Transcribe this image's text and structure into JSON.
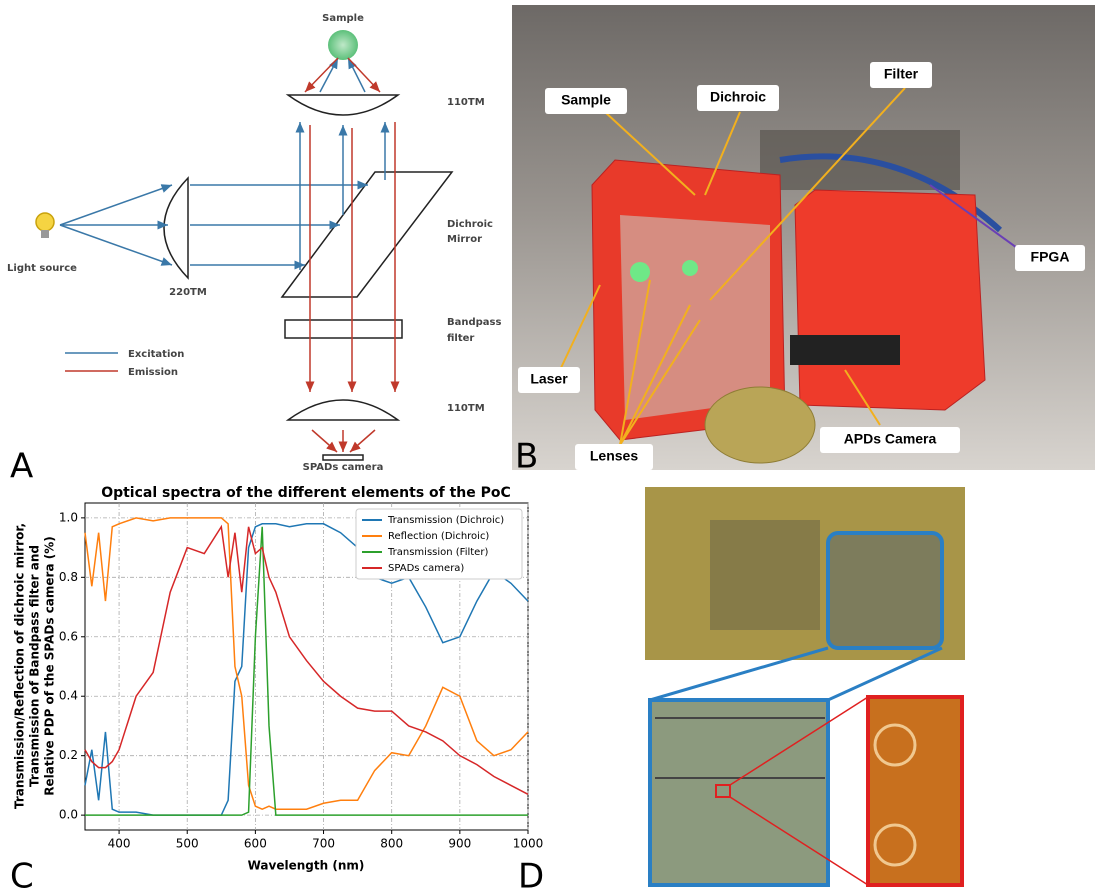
{
  "panels": [
    "A",
    "B",
    "C",
    "D"
  ],
  "diagram": {
    "sample": "Sample",
    "top_lens": "110TM",
    "mirror": [
      "Dichroic",
      "Mirror"
    ],
    "filter": [
      "Bandpass",
      "filter"
    ],
    "bottom_lens": "110TM",
    "light_source": "Light source",
    "side_lens": "220TM",
    "camera": "SPADs camera",
    "legend": [
      "Excitation",
      "Emission"
    ]
  },
  "photo": {
    "labels": [
      "Sample",
      "Dichroic",
      "Filter",
      "FPGA",
      "Laser",
      "Lenses",
      "APDs Camera"
    ]
  },
  "chart_data": {
    "type": "line",
    "title": "Optical spectra of the different elements of the PoC",
    "xlabel": "Wavelength (nm)",
    "ylabel": [
      "Transmission/Reflection of dichroic mirror,",
      "Transmission of Bandpass filter and",
      "Relative PDP of the SPADs camera (%)"
    ],
    "x": [
      350,
      360,
      370,
      380,
      390,
      400,
      425,
      450,
      475,
      500,
      525,
      550,
      560,
      570,
      580,
      590,
      600,
      610,
      620,
      630,
      650,
      675,
      700,
      725,
      750,
      775,
      800,
      825,
      850,
      875,
      900,
      925,
      950,
      975,
      1000
    ],
    "series": [
      {
        "name": "Transmission (Dichroic)",
        "color": "#1f77b4",
        "values": [
          0.1,
          0.22,
          0.05,
          0.28,
          0.02,
          0.01,
          0.01,
          0,
          0,
          0,
          0,
          0,
          0.05,
          0.45,
          0.5,
          0.9,
          0.97,
          0.98,
          0.98,
          0.98,
          0.97,
          0.98,
          0.98,
          0.95,
          0.9,
          0.8,
          0.78,
          0.8,
          0.7,
          0.58,
          0.6,
          0.72,
          0.82,
          0.78,
          0.72
        ]
      },
      {
        "name": "Reflection (Dichroic)",
        "color": "#ff7f0e",
        "values": [
          0.95,
          0.77,
          0.95,
          0.72,
          0.97,
          0.98,
          1.0,
          0.99,
          1.0,
          1.0,
          1.0,
          1.0,
          0.98,
          0.5,
          0.4,
          0.1,
          0.03,
          0.02,
          0.03,
          0.02,
          0.02,
          0.02,
          0.04,
          0.05,
          0.05,
          0.15,
          0.21,
          0.2,
          0.3,
          0.43,
          0.4,
          0.25,
          0.2,
          0.22,
          0.28
        ]
      },
      {
        "name": "Transmission (Filter)",
        "color": "#2ca02c",
        "values": [
          0,
          0,
          0,
          0,
          0,
          0,
          0,
          0,
          0,
          0,
          0,
          0,
          0,
          0,
          0,
          0.01,
          0.6,
          0.97,
          0.3,
          0,
          0,
          0,
          0,
          0,
          0,
          0,
          0,
          0,
          0,
          0,
          0,
          0,
          0,
          0,
          0
        ]
      },
      {
        "name": "SPADs camera)",
        "color": "#d62728",
        "values": [
          0.22,
          0.18,
          0.16,
          0.16,
          0.18,
          0.22,
          0.4,
          0.48,
          0.75,
          0.9,
          0.88,
          0.97,
          0.8,
          0.95,
          0.75,
          0.97,
          0.88,
          0.9,
          0.8,
          0.75,
          0.6,
          0.52,
          0.45,
          0.4,
          0.36,
          0.35,
          0.35,
          0.3,
          0.28,
          0.25,
          0.2,
          0.17,
          0.13,
          0.1,
          0.07
        ]
      }
    ],
    "xlim": [
      350,
      1000
    ],
    "xticks": [
      400,
      500,
      600,
      700,
      800,
      900,
      1000
    ],
    "ylim": [
      -0.05,
      1.05
    ],
    "yticks": [
      {
        "value": 0,
        "label": "0.0"
      },
      {
        "value": 0.2,
        "label": "0.2"
      },
      {
        "value": 0.4,
        "label": "0.4"
      },
      {
        "value": 0.6,
        "label": "0.6"
      },
      {
        "value": 0.8,
        "label": "0.8"
      },
      {
        "value": 1,
        "label": "1.0"
      }
    ],
    "grid": true,
    "legend": "upper right"
  }
}
